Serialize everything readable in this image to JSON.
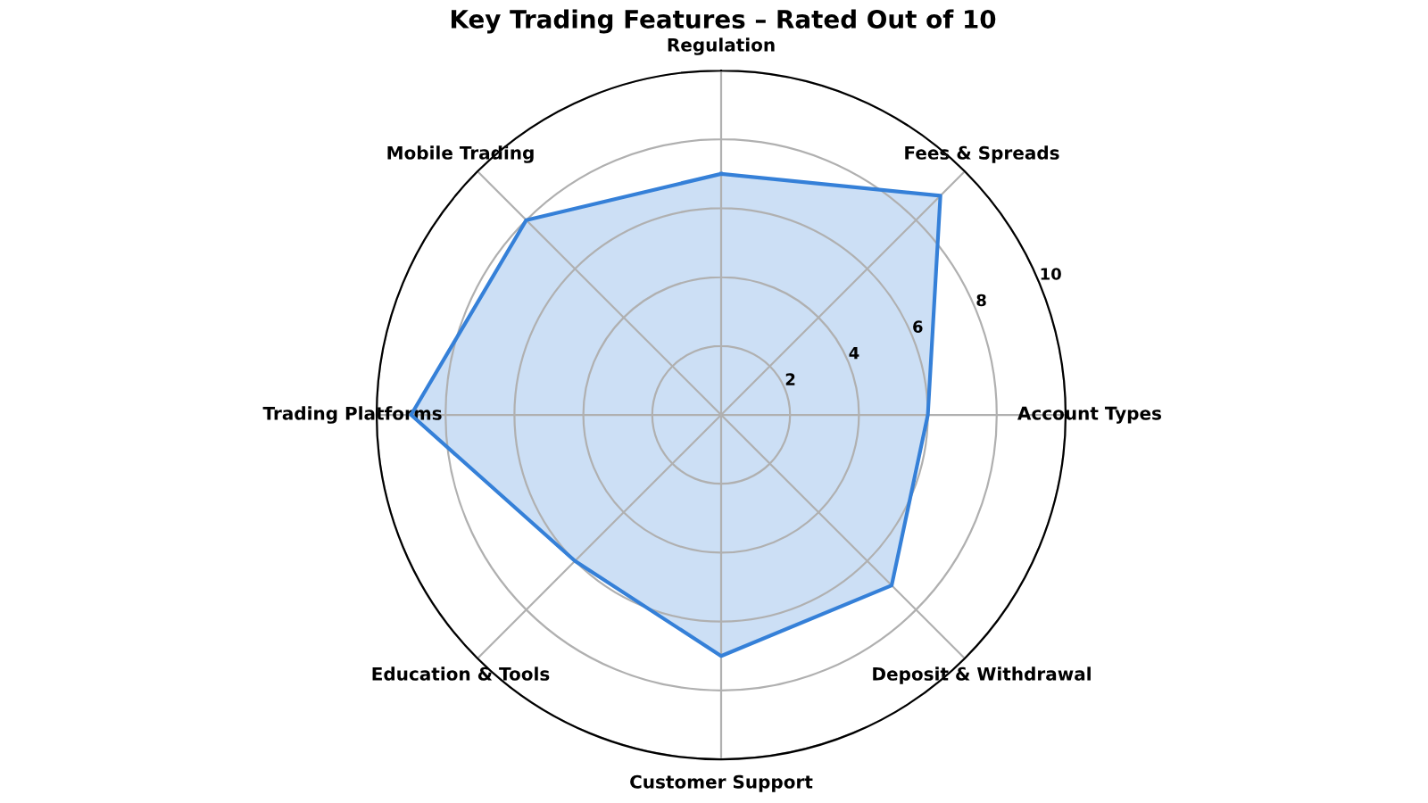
{
  "chart_data": {
    "type": "radar",
    "title": "Key Trading Features – Rated Out of 10",
    "categories": [
      "Regulation",
      "Fees & Spreads",
      "Account Types",
      "Deposit & Withdrawal",
      "Customer Support",
      "Education & Tools",
      "Trading Platforms",
      "Mobile Trading"
    ],
    "series": [
      {
        "color": "#3580d8",
        "values": [
          7,
          9,
          6,
          7,
          7,
          6,
          9,
          8
        ]
      }
    ],
    "ylim": [
      0,
      10
    ],
    "yticks": [
      2,
      4,
      6,
      8,
      10
    ],
    "grid": true
  }
}
